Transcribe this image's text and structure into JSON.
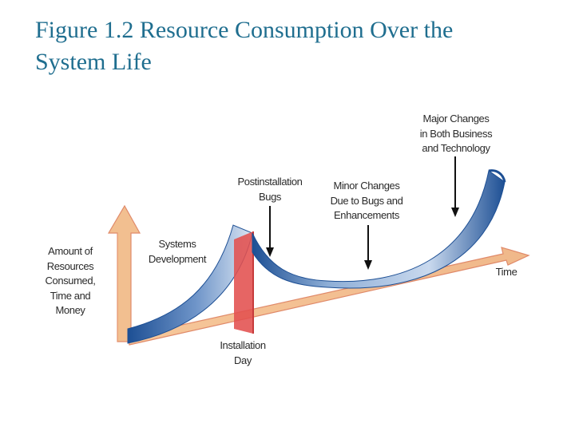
{
  "title": {
    "line1": "Figure 1.2 Resource Consumption Over the",
    "line2": "System Life"
  },
  "labels": {
    "y_axis": [
      "Amount of",
      "Resources",
      "Consumed,",
      "Time and",
      "Money"
    ],
    "systems_development": [
      "Systems",
      "Development"
    ],
    "installation_day": [
      "Installation",
      "Day"
    ],
    "postinstallation_bugs": [
      "Postinstallation",
      "Bugs"
    ],
    "minor_changes": [
      "Minor Changes",
      "Due to Bugs and",
      "Enhancements"
    ],
    "major_changes": [
      "Major Changes",
      "in Both Business",
      "and Technology"
    ],
    "time": "Time"
  },
  "colors": {
    "title": "#1f6e8f",
    "axis_fill": "#f3bf8f",
    "axis_edge": "#e08a6a",
    "curve_dark": "#1d4f94",
    "curve_light": "#d6e3f2",
    "installation_plane": "#e2504f"
  }
}
